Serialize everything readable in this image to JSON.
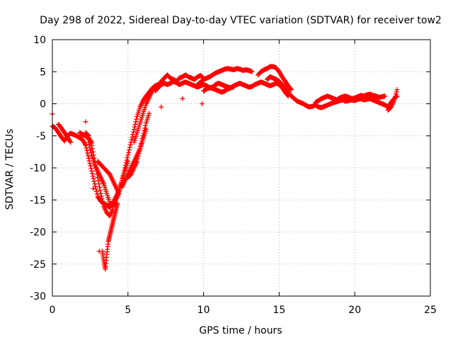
{
  "chart_data": {
    "type": "scatter",
    "title": "Day 298 of 2022, Sidereal Day-to-day VTEC variation (SDTVAR) for receiver tow2",
    "xlabel": "GPS time / hours",
    "ylabel": "SDTVAR / TECUs",
    "xlim": [
      0,
      25
    ],
    "ylim": [
      -30,
      10
    ],
    "xticks": [
      0,
      5,
      10,
      15,
      20,
      25
    ],
    "yticks": [
      -30,
      -25,
      -20,
      -15,
      -10,
      -5,
      0,
      5,
      10
    ],
    "grid": true,
    "marker": "+",
    "color": "#ff0000",
    "series": [
      {
        "name": "tracks",
        "tracks": [
          {
            "x": [
              0.0,
              0.2,
              0.4,
              0.6,
              0.8,
              1.0,
              1.2,
              1.4,
              1.6,
              1.8,
              2.0,
              2.2,
              2.4,
              2.6,
              2.8,
              3.0,
              3.2,
              3.4,
              3.6,
              3.8,
              4.0,
              4.2,
              4.4,
              4.6,
              4.8,
              5.0,
              5.2,
              5.4,
              5.6,
              5.8,
              6.0,
              6.2,
              6.4,
              6.6,
              6.8,
              7.0,
              7.2
            ],
            "y": [
              -3.5,
              -3.8,
              -4.5,
              -5.2,
              -5.8,
              -5.0,
              -4.6,
              -4.8,
              -5.0,
              -5.3,
              -5.6,
              -6.5,
              -8.5,
              -10.5,
              -12.5,
              -14.5,
              -15.2,
              -15.6,
              -15.8,
              -16.2,
              -15.5,
              -14.5,
              -13.5,
              -12.0,
              -10.0,
              -8.0,
              -6.0,
              -4.0,
              -2.0,
              -0.5,
              0.5,
              1.2,
              1.8,
              2.4,
              2.8,
              3.0,
              3.2
            ]
          },
          {
            "x": [
              0.4,
              0.6,
              0.8,
              1.0,
              1.2
            ],
            "y": [
              -3.2,
              -3.8,
              -4.5,
              -5.2,
              -6.0
            ]
          },
          {
            "x": [
              2.2,
              2.4,
              2.6,
              2.8,
              3.0,
              3.2,
              3.4,
              3.6,
              3.8,
              4.0
            ],
            "y": [
              -4.5,
              -5.0,
              -6.5,
              -9.0,
              -11.5,
              -14.0,
              -16.0,
              -17.0,
              -17.5,
              -16.5
            ]
          },
          {
            "x": [
              2.4,
              2.6,
              2.8,
              3.0,
              3.2,
              3.4,
              3.6,
              3.8,
              4.0,
              4.2,
              4.4,
              4.6,
              4.8,
              5.0
            ],
            "y": [
              -6.0,
              -8.0,
              -9.5,
              -10.5,
              -11.5,
              -12.5,
              -14.0,
              -15.5,
              -16.0,
              -15.0,
              -14.0,
              -12.0,
              -10.5,
              -9.0
            ]
          },
          {
            "x": [
              3.0,
              3.2,
              3.4,
              3.6,
              3.8,
              4.0,
              4.2,
              4.4
            ],
            "y": [
              -9.0,
              -9.5,
              -10.0,
              -10.5,
              -11.0,
              -12.0,
              -13.0,
              -14.0
            ]
          },
          {
            "x": [
              3.3,
              3.4,
              3.5,
              3.6,
              3.7,
              3.8,
              3.9,
              4.0,
              4.1,
              4.2,
              4.3
            ],
            "y": [
              -23.0,
              -24.5,
              -25.8,
              -23.5,
              -21.5,
              -20.5,
              -19.5,
              -18.5,
              -17.5,
              -16.5,
              -15.5
            ]
          },
          {
            "x": [
              1.8,
              2.0,
              2.2,
              2.4,
              2.6
            ],
            "y": [
              -4.5,
              -4.8,
              -5.0,
              -5.5,
              -6.0
            ]
          },
          {
            "x": [
              4.6,
              4.8,
              5.0,
              5.2,
              5.4,
              5.6,
              5.8,
              6.0,
              6.2
            ],
            "y": [
              -13.0,
              -12.0,
              -11.0,
              -10.0,
              -9.0,
              -8.0,
              -7.0,
              -5.5,
              -4.0
            ]
          },
          {
            "x": [
              5.0,
              5.2,
              5.4,
              5.6,
              5.8,
              6.0,
              6.2,
              6.4
            ],
            "y": [
              -11.5,
              -11.0,
              -10.0,
              -9.0,
              -7.0,
              -5.0,
              -3.0,
              -1.5
            ]
          },
          {
            "x": [
              5.4,
              5.6,
              5.8,
              6.0,
              6.2,
              6.4,
              6.6,
              6.8,
              7.0
            ],
            "y": [
              -6.0,
              -4.5,
              -3.0,
              -1.5,
              0.0,
              1.0,
              2.0,
              2.5,
              3.0
            ]
          },
          {
            "x": [
              6.8,
              7.0,
              7.2,
              7.4,
              7.6,
              7.8,
              8.0,
              8.2,
              8.4,
              8.6,
              8.8,
              9.0,
              9.2,
              9.4,
              9.6,
              9.8,
              10.0,
              10.2,
              10.4,
              10.6,
              10.8,
              11.0,
              11.2,
              11.4,
              11.6,
              11.8,
              12.0,
              12.2,
              12.4,
              12.6,
              12.8,
              13.0,
              13.2,
              13.4,
              13.6,
              13.8,
              14.0,
              14.2,
              14.4,
              14.6,
              14.8,
              15.0,
              15.2,
              15.4,
              15.6
            ],
            "y": [
              2.0,
              2.5,
              3.0,
              3.2,
              3.0,
              3.2,
              3.5,
              3.3,
              3.0,
              3.2,
              3.4,
              3.2,
              3.0,
              2.8,
              2.6,
              2.8,
              3.0,
              2.8,
              2.5,
              2.6,
              3.0,
              3.2,
              3.0,
              2.8,
              2.6,
              2.5,
              2.8,
              3.0,
              3.2,
              3.0,
              2.8,
              2.6,
              2.7,
              3.0,
              3.2,
              3.4,
              3.2,
              3.0,
              2.8,
              3.0,
              3.2,
              3.0,
              2.5,
              1.8,
              1.2
            ]
          },
          {
            "x": [
              7.2,
              7.4,
              7.6,
              7.8,
              8.0,
              8.2,
              8.4,
              8.6,
              8.8,
              9.0,
              9.2,
              9.4,
              9.6,
              9.8,
              10.0
            ],
            "y": [
              3.5,
              4.0,
              4.5,
              4.0,
              3.8,
              3.5,
              4.0,
              4.2,
              4.5,
              4.2,
              4.0,
              3.8,
              4.2,
              4.4,
              4.0
            ]
          },
          {
            "x": [
              9.6,
              9.8,
              10.0,
              10.2,
              10.4,
              10.6,
              10.8,
              11.0,
              11.2,
              11.4,
              11.6,
              11.8,
              12.0,
              12.2,
              12.4,
              12.6,
              12.8,
              13.0,
              13.2
            ],
            "y": [
              3.0,
              3.4,
              3.8,
              4.0,
              4.2,
              4.5,
              4.8,
              5.0,
              5.2,
              5.4,
              5.5,
              5.4,
              5.3,
              5.5,
              5.4,
              5.2,
              5.3,
              5.2,
              5.0
            ]
          },
          {
            "x": [
              10.0,
              10.2,
              10.4,
              10.6,
              10.8,
              11.0,
              11.2,
              11.4,
              11.6,
              11.8,
              12.0
            ],
            "y": [
              2.0,
              2.3,
              2.5,
              2.4,
              2.2,
              2.0,
              1.8,
              2.0,
              2.3,
              2.5,
              2.6
            ]
          },
          {
            "x": [
              13.6,
              13.8,
              14.0,
              14.2,
              14.4,
              14.6,
              14.8,
              15.0,
              15.2,
              15.4,
              15.6,
              15.8
            ],
            "y": [
              4.5,
              5.0,
              5.3,
              5.5,
              5.8,
              5.8,
              5.6,
              5.0,
              4.2,
              3.5,
              2.8,
              2.2
            ]
          },
          {
            "x": [
              14.2,
              14.4,
              14.6,
              14.8,
              15.0,
              15.2,
              15.4,
              15.6,
              15.8,
              16.0,
              16.2,
              16.4,
              16.6,
              16.8,
              17.0,
              17.2,
              17.4,
              17.6,
              17.8,
              18.0,
              18.2,
              18.4,
              18.6,
              18.8,
              19.0,
              19.2,
              19.4,
              19.6,
              19.8,
              20.0,
              20.2,
              20.4,
              20.6,
              20.8,
              21.0,
              21.2,
              21.4,
              21.6,
              21.8,
              22.0,
              22.2,
              22.4,
              22.6,
              22.8
            ],
            "y": [
              3.8,
              4.2,
              4.0,
              3.8,
              3.5,
              3.0,
              2.5,
              1.8,
              1.2,
              0.8,
              0.4,
              0.2,
              0.0,
              -0.3,
              -0.5,
              -0.4,
              -0.2,
              -0.5,
              -0.6,
              -0.4,
              -0.2,
              0.0,
              0.2,
              0.3,
              0.5,
              0.6,
              0.4,
              0.5,
              0.6,
              0.5,
              0.7,
              0.8,
              0.6,
              0.7,
              0.8,
              0.6,
              0.4,
              0.2,
              0.0,
              -0.2,
              -0.5,
              0.2,
              0.8,
              1.2
            ]
          },
          {
            "x": [
              17.4,
              17.6,
              17.8,
              18.0,
              18.2,
              18.4,
              18.6,
              18.8,
              19.0,
              19.2,
              19.4,
              19.6,
              19.8,
              20.0,
              20.2,
              20.4,
              20.6,
              20.8,
              21.0,
              21.2,
              21.4,
              21.6,
              21.8,
              22.0
            ],
            "y": [
              0.2,
              0.5,
              0.8,
              1.0,
              1.2,
              1.0,
              0.8,
              0.6,
              0.9,
              1.1,
              1.2,
              1.0,
              0.8,
              0.9,
              1.1,
              1.3,
              1.2,
              1.4,
              1.5,
              1.3,
              1.2,
              1.0,
              1.1,
              1.2
            ]
          },
          {
            "x": [
              22.2,
              22.4,
              22.6,
              22.8
            ],
            "y": [
              -1.0,
              -0.5,
              0.5,
              2.2
            ]
          }
        ],
        "isolated_points": [
          {
            "x": 0.0,
            "y": -1.6
          },
          {
            "x": 2.2,
            "y": -2.8
          },
          {
            "x": 2.7,
            "y": -13.2
          },
          {
            "x": 3.1,
            "y": -23.0
          },
          {
            "x": 7.2,
            "y": -0.5
          },
          {
            "x": 8.6,
            "y": 0.8
          },
          {
            "x": 9.9,
            "y": 0.0
          },
          {
            "x": 14.2,
            "y": 5.5
          }
        ]
      }
    ]
  }
}
